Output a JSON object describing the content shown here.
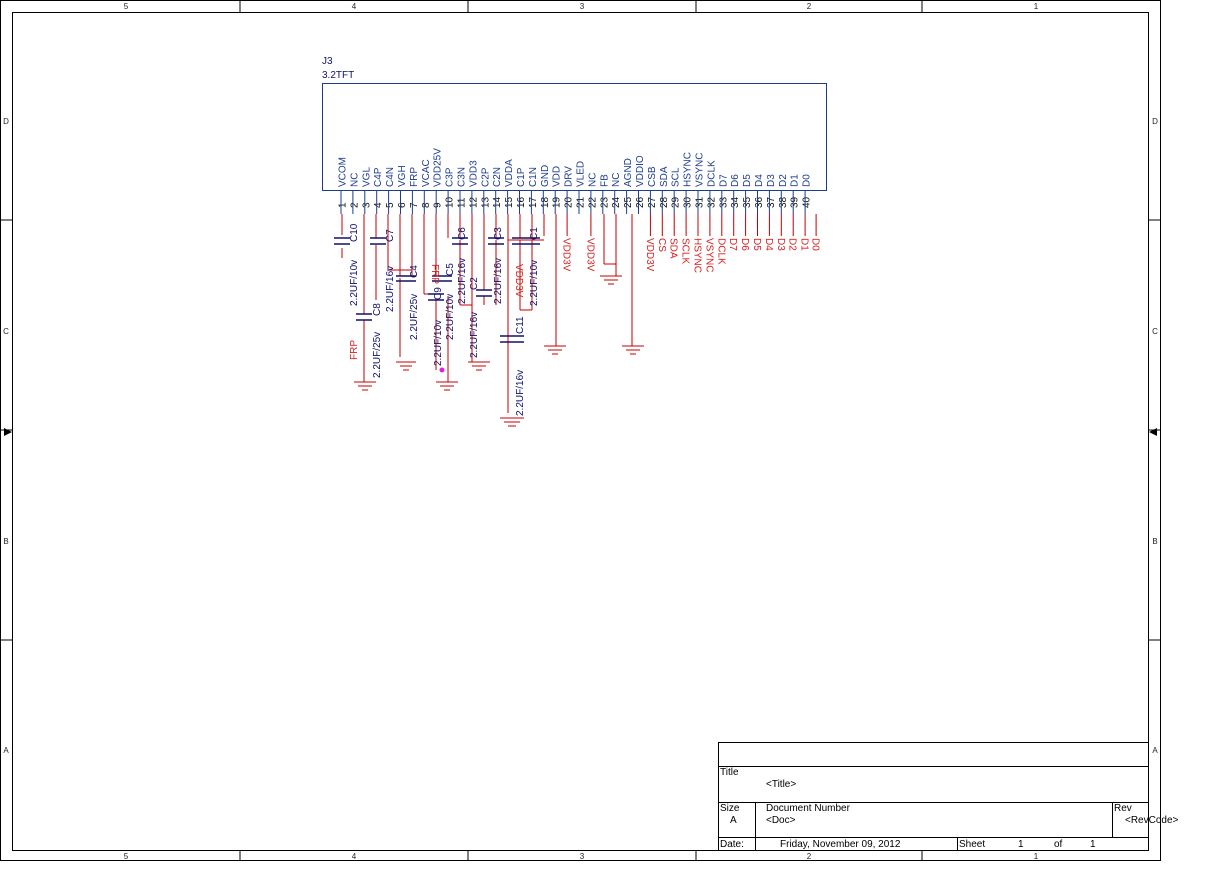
{
  "frame": {
    "columns": [
      "5",
      "4",
      "3",
      "2",
      "1"
    ],
    "rows": [
      "D",
      "C",
      "B",
      "A"
    ]
  },
  "part": {
    "ref": "J3",
    "value": "3.2TFT",
    "pins": [
      {
        "num": "1",
        "name": "VCOM"
      },
      {
        "num": "2",
        "name": "NC"
      },
      {
        "num": "3",
        "name": "VGL"
      },
      {
        "num": "4",
        "name": "C4P"
      },
      {
        "num": "5",
        "name": "C4N"
      },
      {
        "num": "6",
        "name": "VGH"
      },
      {
        "num": "7",
        "name": "FRP"
      },
      {
        "num": "8",
        "name": "VCAC"
      },
      {
        "num": "9",
        "name": "VDD25V"
      },
      {
        "num": "10",
        "name": "C3P"
      },
      {
        "num": "11",
        "name": "C3N"
      },
      {
        "num": "12",
        "name": "VDD3"
      },
      {
        "num": "13",
        "name": "C2P"
      },
      {
        "num": "14",
        "name": "C2N"
      },
      {
        "num": "15",
        "name": "VDDA"
      },
      {
        "num": "16",
        "name": "C1P"
      },
      {
        "num": "17",
        "name": "C1N"
      },
      {
        "num": "18",
        "name": "GND"
      },
      {
        "num": "19",
        "name": "VDD"
      },
      {
        "num": "20",
        "name": "DRV"
      },
      {
        "num": "21",
        "name": "VLED"
      },
      {
        "num": "22",
        "name": "NC"
      },
      {
        "num": "23",
        "name": "FB"
      },
      {
        "num": "24",
        "name": "NC"
      },
      {
        "num": "25",
        "name": "AGND"
      },
      {
        "num": "26",
        "name": "VDDIO"
      },
      {
        "num": "27",
        "name": "CSB"
      },
      {
        "num": "28",
        "name": "SDA"
      },
      {
        "num": "29",
        "name": "SCL"
      },
      {
        "num": "30",
        "name": "HSYNC"
      },
      {
        "num": "31",
        "name": "VSYNC"
      },
      {
        "num": "32",
        "name": "DCLK"
      },
      {
        "num": "33",
        "name": "D7"
      },
      {
        "num": "34",
        "name": "D6"
      },
      {
        "num": "35",
        "name": "D5"
      },
      {
        "num": "36",
        "name": "D4"
      },
      {
        "num": "37",
        "name": "D3"
      },
      {
        "num": "38",
        "name": "D2"
      },
      {
        "num": "39",
        "name": "D1"
      },
      {
        "num": "40",
        "name": "D0"
      }
    ]
  },
  "nets": [
    {
      "label": "VDD3V",
      "pin": "20"
    },
    {
      "label": "VDD3V",
      "pin": "22"
    },
    {
      "label": "VDD3V",
      "pin": "27"
    },
    {
      "label": "CS",
      "pin": "28"
    },
    {
      "label": "SDA",
      "pin": "29"
    },
    {
      "label": "SCLK",
      "pin": "30"
    },
    {
      "label": "HSYNC",
      "pin": "31"
    },
    {
      "label": "VSYNC",
      "pin": "32"
    },
    {
      "label": "DCLK",
      "pin": "33"
    },
    {
      "label": "D7",
      "pin": "34"
    },
    {
      "label": "D6",
      "pin": "35"
    },
    {
      "label": "D5",
      "pin": "36"
    },
    {
      "label": "D4",
      "pin": "37"
    },
    {
      "label": "D3",
      "pin": "38"
    },
    {
      "label": "D2",
      "pin": "39"
    },
    {
      "label": "D1",
      "pin": "40"
    },
    {
      "label": "D0",
      "pin": "40b"
    }
  ],
  "extra_nets": {
    "frp_top": "FRP",
    "frp_bottom": "FRP",
    "vdd3v_mid": "VDD3V"
  },
  "capacitors": [
    {
      "ref": "C10",
      "value": "2.2UF/10v"
    },
    {
      "ref": "C7",
      "value": "2.2UF/16v"
    },
    {
      "ref": "C8",
      "value": "2.2UF/25v"
    },
    {
      "ref": "C4",
      "value": "2.2UF/25v"
    },
    {
      "ref": "C9",
      "value": "2.2UF/10v"
    },
    {
      "ref": "C5",
      "value": "2.2UF/10v"
    },
    {
      "ref": "C6",
      "value": "2.2UF/16v"
    },
    {
      "ref": "C2",
      "value": "2.2UF/16v"
    },
    {
      "ref": "C3",
      "value": "2.2UF/16v"
    },
    {
      "ref": "C1",
      "value": "2.2UF/10v"
    },
    {
      "ref": "C11",
      "value": "2.2UF/16v"
    }
  ],
  "titleblock": {
    "title_label": "Title",
    "title_value": "<Title>",
    "size_label": "Size",
    "size_value": "A",
    "docnum_label": "Document Number",
    "docnum_value": "<Doc>",
    "rev_label": "Rev",
    "rev_value": "<RevCode>",
    "date_label": "Date:",
    "date_value": "Friday, November 09, 2012",
    "sheet_label": "Sheet",
    "sheet_value": "1",
    "of_label": "of",
    "of_value": "1"
  },
  "colors": {
    "wire": "#c00000",
    "body": "#1c3c8c",
    "cap": "#10106a",
    "net": "#d62020",
    "junction": "#e020e0"
  }
}
